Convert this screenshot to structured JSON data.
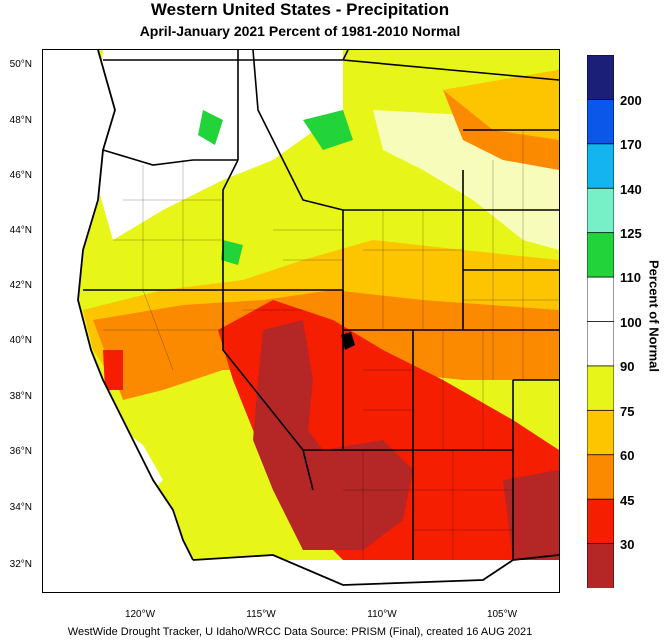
{
  "header": {
    "title": "Western United States - Precipitation",
    "subtitle": "April-January 2021  Percent of 1981-2010 Normal"
  },
  "map": {
    "lat_labels": [
      "50°N",
      "48°N",
      "46°N",
      "44°N",
      "42°N",
      "40°N",
      "38°N",
      "36°N",
      "34°N",
      "32°N"
    ],
    "lon_labels": [
      "120°W",
      "115°W",
      "110°W",
      "105°W"
    ]
  },
  "legend": {
    "title": "Percent of Normal",
    "labels": [
      "200",
      "170",
      "140",
      "125",
      "110",
      "100",
      "90",
      "75",
      "60",
      "45",
      "30"
    ],
    "colors": [
      "#1c1f78",
      "#0b57e8",
      "#14b4f0",
      "#77f0c8",
      "#22d43a",
      "#ffffff",
      "#ffffff",
      "#e8f518",
      "#fdc400",
      "#fb8a00",
      "#f51e00",
      "#b52626"
    ]
  },
  "footer": {
    "text": "WestWide Drought Tracker, U Idaho/WRCC Data Source: PRISM (Final), created 16 AUG 2021"
  }
}
